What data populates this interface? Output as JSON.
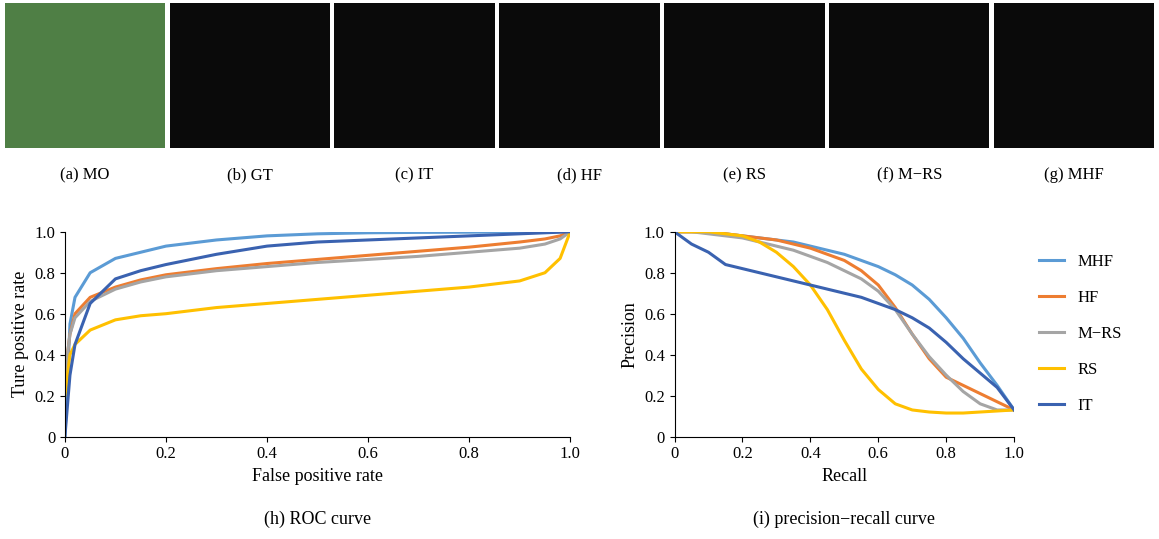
{
  "panels": [
    "(a) MO",
    "(b) GT",
    "(c) IT",
    "(d) HF",
    "(e) RS",
    "(f) M−RS",
    "(g) MHF"
  ],
  "chart_data": [
    {
      "type": "line",
      "title": "(h) ROC curve",
      "x_label": "False positive rate",
      "y_label": "Ture positive rate",
      "x": [
        0,
        0.01,
        0.02,
        0.05,
        0.1,
        0.15,
        0.2,
        0.3,
        0.4,
        0.5,
        0.6,
        0.7,
        0.8,
        0.9,
        0.95,
        0.98,
        1.0
      ],
      "xlim": [
        0,
        1.0
      ],
      "ylim": [
        0,
        1.0
      ],
      "xticks": [
        0,
        0.2,
        0.4,
        0.6,
        0.8,
        1.0
      ],
      "yticks": [
        0,
        0.2,
        0.4,
        0.6,
        0.8,
        1.0
      ],
      "series": [
        {
          "name": "MHF",
          "color": "#5b9bd5",
          "values": [
            0,
            0.55,
            0.68,
            0.8,
            0.87,
            0.9,
            0.93,
            0.96,
            0.98,
            0.99,
            0.995,
            0.997,
            0.998,
            0.999,
            1.0,
            1.0,
            1.0
          ]
        },
        {
          "name": "HF",
          "color": "#ed7d31",
          "values": [
            0.3,
            0.5,
            0.6,
            0.68,
            0.73,
            0.765,
            0.79,
            0.82,
            0.845,
            0.865,
            0.885,
            0.905,
            0.925,
            0.95,
            0.965,
            0.98,
            1.0
          ]
        },
        {
          "name": "M−RS",
          "color": "#a5a5a5",
          "values": [
            0.3,
            0.5,
            0.58,
            0.66,
            0.72,
            0.755,
            0.78,
            0.81,
            0.83,
            0.85,
            0.865,
            0.88,
            0.9,
            0.92,
            0.94,
            0.965,
            1.0
          ]
        },
        {
          "name": "RS",
          "color": "#ffc000",
          "values": [
            0.2,
            0.4,
            0.45,
            0.52,
            0.57,
            0.59,
            0.6,
            0.63,
            0.65,
            0.67,
            0.69,
            0.71,
            0.73,
            0.76,
            0.8,
            0.87,
            1.0
          ]
        },
        {
          "name": "IT",
          "color": "#3a62b0",
          "values": [
            0,
            0.3,
            0.45,
            0.65,
            0.77,
            0.81,
            0.84,
            0.89,
            0.93,
            0.95,
            0.96,
            0.97,
            0.98,
            0.99,
            0.995,
            0.998,
            1.0
          ]
        }
      ]
    },
    {
      "type": "line",
      "title": "(i) precision−recall curve",
      "x_label": "Recall",
      "y_label": "Precision",
      "legend": "right",
      "x": [
        0,
        0.05,
        0.1,
        0.15,
        0.2,
        0.25,
        0.3,
        0.35,
        0.4,
        0.45,
        0.5,
        0.55,
        0.6,
        0.65,
        0.7,
        0.75,
        0.8,
        0.85,
        0.9,
        0.95,
        1.0
      ],
      "xlim": [
        0,
        1.0
      ],
      "ylim": [
        0,
        1.0
      ],
      "xticks": [
        0,
        0.2,
        0.4,
        0.6,
        0.8,
        1.0
      ],
      "yticks": [
        0,
        0.2,
        0.4,
        0.6,
        0.8,
        1.0
      ],
      "series": [
        {
          "name": "MHF",
          "color": "#5b9bd5",
          "values": [
            1.0,
            1.0,
            1.0,
            0.99,
            0.98,
            0.97,
            0.96,
            0.95,
            0.93,
            0.91,
            0.89,
            0.86,
            0.83,
            0.79,
            0.74,
            0.67,
            0.58,
            0.48,
            0.36,
            0.25,
            0.13
          ]
        },
        {
          "name": "HF",
          "color": "#ed7d31",
          "values": [
            1.0,
            1.0,
            1.0,
            0.99,
            0.98,
            0.97,
            0.96,
            0.94,
            0.92,
            0.89,
            0.86,
            0.81,
            0.74,
            0.63,
            0.5,
            0.38,
            0.29,
            0.25,
            0.21,
            0.17,
            0.13
          ]
        },
        {
          "name": "M−RS",
          "color": "#a5a5a5",
          "values": [
            1.0,
            1.0,
            0.99,
            0.98,
            0.97,
            0.95,
            0.93,
            0.91,
            0.88,
            0.85,
            0.81,
            0.77,
            0.71,
            0.62,
            0.5,
            0.39,
            0.3,
            0.22,
            0.16,
            0.13,
            0.13
          ]
        },
        {
          "name": "RS",
          "color": "#ffc000",
          "values": [
            1.0,
            1.0,
            1.0,
            0.99,
            0.98,
            0.95,
            0.9,
            0.83,
            0.74,
            0.62,
            0.47,
            0.33,
            0.23,
            0.16,
            0.13,
            0.12,
            0.115,
            0.115,
            0.12,
            0.125,
            0.13
          ]
        },
        {
          "name": "IT",
          "color": "#3a62b0",
          "values": [
            1.0,
            0.94,
            0.9,
            0.84,
            0.82,
            0.8,
            0.78,
            0.76,
            0.74,
            0.72,
            0.7,
            0.68,
            0.65,
            0.62,
            0.58,
            0.53,
            0.46,
            0.38,
            0.31,
            0.24,
            0.13
          ]
        }
      ]
    }
  ]
}
